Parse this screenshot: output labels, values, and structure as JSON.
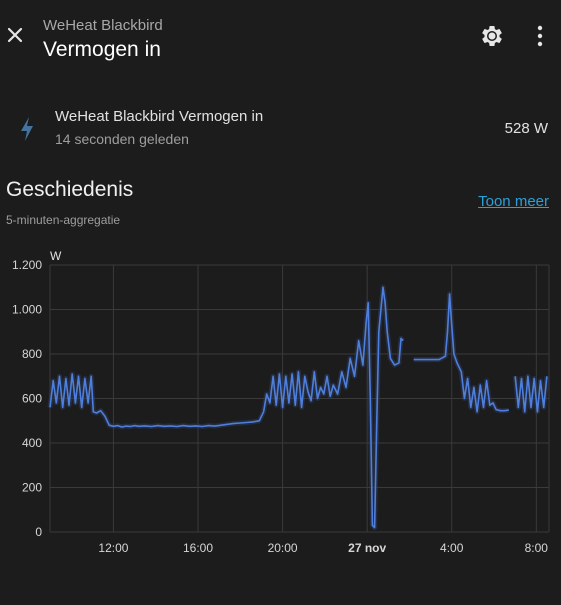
{
  "header": {
    "subtitle": "WeHeat Blackbird",
    "title": "Vermogen in",
    "icons": {
      "close": "close-icon",
      "settings": "gear-icon",
      "menu": "dots-vertical-icon"
    }
  },
  "entity": {
    "name": "WeHeat Blackbird Vermogen in",
    "last_changed": "14 seconden geleden",
    "state": "528 W",
    "icon": "flash-icon"
  },
  "history": {
    "title": "Geschiedenis",
    "subtitle": "5-minuten-aggregatie",
    "more_label": "Toon meer"
  },
  "colors": {
    "background": "#1c1c1c",
    "accent_line": "#4f7fdc",
    "band": "#2b3a5c",
    "link": "#2d9fd8",
    "grid": "#3a3a3a"
  },
  "chart_data": {
    "type": "line",
    "title": "",
    "xlabel": "",
    "ylabel": "W",
    "ylim": [
      0,
      1200
    ],
    "y_ticks": [
      {
        "value": 0,
        "label": "0"
      },
      {
        "value": 200,
        "label": "200"
      },
      {
        "value": 400,
        "label": "400"
      },
      {
        "value": 600,
        "label": "600"
      },
      {
        "value": 800,
        "label": "800"
      },
      {
        "value": 1000,
        "label": "1.000"
      },
      {
        "value": 1200,
        "label": "1.200"
      }
    ],
    "xlim": [
      9.0,
      32.6
    ],
    "x_ticks": [
      {
        "value": 12,
        "label": "12:00",
        "bold": false
      },
      {
        "value": 16,
        "label": "16:00",
        "bold": false
      },
      {
        "value": 20,
        "label": "20:00",
        "bold": false
      },
      {
        "value": 24,
        "label": "27 nov",
        "bold": true
      },
      {
        "value": 28,
        "label": "4:00",
        "bold": false
      },
      {
        "value": 32,
        "label": "8:00",
        "bold": false
      }
    ],
    "grid": true,
    "legend": "none",
    "series": [
      {
        "segments": [
          [
            [
              9.0,
              560
            ],
            [
              9.15,
              680
            ],
            [
              9.3,
              580
            ],
            [
              9.45,
              700
            ],
            [
              9.6,
              560
            ],
            [
              9.75,
              690
            ],
            [
              9.9,
              570
            ],
            [
              10.05,
              710
            ],
            [
              10.2,
              580
            ],
            [
              10.35,
              700
            ],
            [
              10.5,
              560
            ],
            [
              10.65,
              690
            ],
            [
              10.8,
              580
            ],
            [
              10.95,
              700
            ],
            [
              11.05,
              540
            ],
            [
              11.2,
              535
            ],
            [
              11.4,
              545
            ],
            [
              11.6,
              520
            ],
            [
              11.8,
              480
            ],
            [
              12.0,
              475
            ],
            [
              12.2,
              478
            ],
            [
              12.4,
              472
            ],
            [
              12.6,
              476
            ],
            [
              12.8,
              474
            ],
            [
              13.0,
              478
            ],
            [
              13.2,
              475
            ],
            [
              13.5,
              477
            ],
            [
              13.8,
              474
            ],
            [
              14.1,
              478
            ],
            [
              14.4,
              475
            ],
            [
              14.7,
              477
            ],
            [
              15.0,
              474
            ],
            [
              15.3,
              478
            ],
            [
              15.6,
              475
            ],
            [
              15.9,
              477
            ],
            [
              16.2,
              474
            ],
            [
              16.5,
              478
            ],
            [
              16.8,
              476
            ],
            [
              17.1,
              480
            ],
            [
              17.4,
              484
            ],
            [
              17.7,
              488
            ],
            [
              18.0,
              490
            ],
            [
              18.3,
              492
            ],
            [
              18.6,
              495
            ],
            [
              18.9,
              500
            ],
            [
              19.1,
              540
            ],
            [
              19.25,
              620
            ],
            [
              19.4,
              580
            ],
            [
              19.55,
              700
            ],
            [
              19.7,
              570
            ],
            [
              19.85,
              710
            ],
            [
              20.0,
              560
            ],
            [
              20.15,
              700
            ],
            [
              20.3,
              580
            ],
            [
              20.45,
              710
            ],
            [
              20.6,
              570
            ],
            [
              20.75,
              720
            ],
            [
              20.9,
              560
            ],
            [
              21.05,
              700
            ],
            [
              21.2,
              630
            ],
            [
              21.35,
              590
            ],
            [
              21.5,
              720
            ],
            [
              21.65,
              600
            ],
            [
              21.8,
              650
            ],
            [
              21.95,
              620
            ],
            [
              22.1,
              700
            ],
            [
              22.25,
              610
            ],
            [
              22.4,
              660
            ],
            [
              22.6,
              620
            ],
            [
              22.8,
              720
            ],
            [
              23.0,
              650
            ],
            [
              23.2,
              780
            ],
            [
              23.4,
              700
            ],
            [
              23.6,
              860
            ],
            [
              23.8,
              750
            ],
            [
              23.95,
              940
            ],
            [
              24.05,
              1030
            ],
            [
              24.15,
              600
            ],
            [
              24.25,
              30
            ],
            [
              24.35,
              20
            ],
            [
              24.45,
              480
            ],
            [
              24.55,
              900
            ],
            [
              24.65,
              1000
            ],
            [
              24.75,
              1100
            ],
            [
              24.85,
              1030
            ],
            [
              24.95,
              900
            ],
            [
              25.1,
              780
            ],
            [
              25.3,
              750
            ],
            [
              25.5,
              760
            ],
            [
              25.6,
              870
            ],
            [
              25.7,
              860
            ]
          ],
          [
            [
              26.2,
              775
            ],
            [
              26.6,
              775
            ],
            [
              27.0,
              775
            ],
            [
              27.4,
              775
            ],
            [
              27.7,
              790
            ],
            [
              27.8,
              900
            ],
            [
              27.9,
              1070
            ],
            [
              28.0,
              930
            ],
            [
              28.1,
              800
            ],
            [
              28.25,
              760
            ],
            [
              28.45,
              720
            ],
            [
              28.6,
              600
            ],
            [
              28.75,
              690
            ],
            [
              28.9,
              560
            ],
            [
              29.05,
              650
            ],
            [
              29.2,
              540
            ],
            [
              29.35,
              660
            ],
            [
              29.5,
              560
            ],
            [
              29.65,
              680
            ],
            [
              29.8,
              570
            ],
            [
              29.95,
              580
            ],
            [
              30.1,
              550
            ],
            [
              30.3,
              545
            ],
            [
              30.5,
              545
            ],
            [
              30.7,
              548
            ]
          ],
          [
            [
              31.0,
              700
            ],
            [
              31.15,
              560
            ],
            [
              31.3,
              690
            ],
            [
              31.45,
              540
            ],
            [
              31.6,
              700
            ],
            [
              31.75,
              560
            ],
            [
              31.9,
              690
            ],
            [
              32.05,
              540
            ],
            [
              32.2,
              680
            ],
            [
              32.35,
              560
            ],
            [
              32.5,
              700
            ]
          ]
        ]
      }
    ]
  }
}
